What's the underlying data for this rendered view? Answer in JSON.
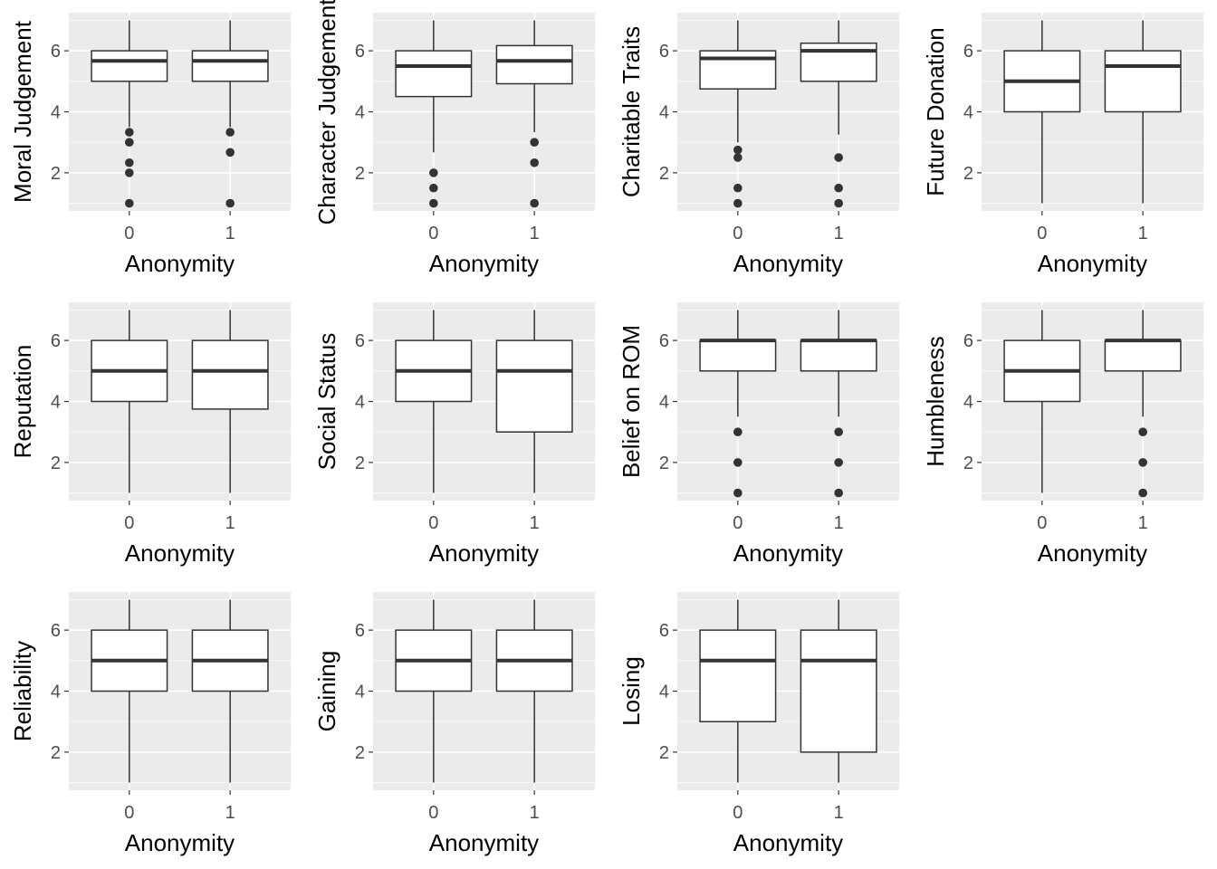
{
  "chart_data": [
    {
      "type": "boxplot",
      "xlabel": "Anonymity",
      "ylabel": "Moral Judgement",
      "categories": [
        "0",
        "1"
      ],
      "ylim": [
        0.75,
        7.25
      ],
      "yticks": [
        2,
        4,
        6
      ],
      "boxes": [
        {
          "category": "0",
          "whisker_low": 3.5,
          "q1": 5.0,
          "median": 5.67,
          "q3": 6.0,
          "whisker_high": 7.0,
          "outliers": [
            3.33,
            3.0,
            2.33,
            2.0,
            1.0
          ]
        },
        {
          "category": "1",
          "whisker_low": 3.5,
          "q1": 5.0,
          "median": 5.67,
          "q3": 6.0,
          "whisker_high": 7.0,
          "outliers": [
            3.33,
            2.67,
            1.0
          ]
        }
      ]
    },
    {
      "type": "boxplot",
      "xlabel": "Anonymity",
      "ylabel": "Character Judgement",
      "categories": [
        "0",
        "1"
      ],
      "ylim": [
        0.75,
        7.25
      ],
      "yticks": [
        2,
        4,
        6
      ],
      "boxes": [
        {
          "category": "0",
          "whisker_low": 2.67,
          "q1": 4.5,
          "median": 5.5,
          "q3": 6.0,
          "whisker_high": 7.0,
          "outliers": [
            2.0,
            1.5,
            1.0
          ]
        },
        {
          "category": "1",
          "whisker_low": 3.33,
          "q1": 4.92,
          "median": 5.67,
          "q3": 6.17,
          "whisker_high": 7.0,
          "outliers": [
            3.0,
            2.33,
            1.0
          ]
        }
      ]
    },
    {
      "type": "boxplot",
      "xlabel": "Anonymity",
      "ylabel": "Charitable Traits",
      "categories": [
        "0",
        "1"
      ],
      "ylim": [
        0.75,
        7.25
      ],
      "yticks": [
        2,
        4,
        6
      ],
      "boxes": [
        {
          "category": "0",
          "whisker_low": 3.0,
          "q1": 4.75,
          "median": 5.75,
          "q3": 6.0,
          "whisker_high": 7.0,
          "outliers": [
            2.75,
            2.5,
            1.5,
            1.0
          ]
        },
        {
          "category": "1",
          "whisker_low": 3.25,
          "q1": 5.0,
          "median": 6.0,
          "q3": 6.25,
          "whisker_high": 7.0,
          "outliers": [
            2.5,
            1.5,
            1.0
          ]
        }
      ]
    },
    {
      "type": "boxplot",
      "xlabel": "Anonymity",
      "ylabel": "Future Donation",
      "categories": [
        "0",
        "1"
      ],
      "ylim": [
        0.75,
        7.25
      ],
      "yticks": [
        2,
        4,
        6
      ],
      "boxes": [
        {
          "category": "0",
          "whisker_low": 1.0,
          "q1": 4.0,
          "median": 5.0,
          "q3": 6.0,
          "whisker_high": 7.0,
          "outliers": []
        },
        {
          "category": "1",
          "whisker_low": 1.0,
          "q1": 4.0,
          "median": 5.5,
          "q3": 6.0,
          "whisker_high": 7.0,
          "outliers": []
        }
      ]
    },
    {
      "type": "boxplot",
      "xlabel": "Anonymity",
      "ylabel": "Reputation",
      "categories": [
        "0",
        "1"
      ],
      "ylim": [
        0.75,
        7.25
      ],
      "yticks": [
        2,
        4,
        6
      ],
      "boxes": [
        {
          "category": "0",
          "whisker_low": 1.0,
          "q1": 4.0,
          "median": 5.0,
          "q3": 6.0,
          "whisker_high": 7.0,
          "outliers": []
        },
        {
          "category": "1",
          "whisker_low": 1.0,
          "q1": 3.75,
          "median": 5.0,
          "q3": 6.0,
          "whisker_high": 7.0,
          "outliers": []
        }
      ]
    },
    {
      "type": "boxplot",
      "xlabel": "Anonymity",
      "ylabel": "Social Status",
      "categories": [
        "0",
        "1"
      ],
      "ylim": [
        0.75,
        7.25
      ],
      "yticks": [
        2,
        4,
        6
      ],
      "boxes": [
        {
          "category": "0",
          "whisker_low": 1.0,
          "q1": 4.0,
          "median": 5.0,
          "q3": 6.0,
          "whisker_high": 7.0,
          "outliers": []
        },
        {
          "category": "1",
          "whisker_low": 1.0,
          "q1": 3.0,
          "median": 5.0,
          "q3": 6.0,
          "whisker_high": 7.0,
          "outliers": []
        }
      ]
    },
    {
      "type": "boxplot",
      "xlabel": "Anonymity",
      "ylabel": "Belief on ROM",
      "categories": [
        "0",
        "1"
      ],
      "ylim": [
        0.75,
        7.25
      ],
      "yticks": [
        2,
        4,
        6
      ],
      "boxes": [
        {
          "category": "0",
          "whisker_low": 3.5,
          "q1": 5.0,
          "median": 6.0,
          "q3": 6.0,
          "whisker_high": 7.0,
          "outliers": [
            3.0,
            2.0,
            1.0
          ]
        },
        {
          "category": "1",
          "whisker_low": 3.5,
          "q1": 5.0,
          "median": 6.0,
          "q3": 6.0,
          "whisker_high": 7.0,
          "outliers": [
            3.0,
            2.0,
            1.0
          ]
        }
      ]
    },
    {
      "type": "boxplot",
      "xlabel": "Anonymity",
      "ylabel": "Humbleness",
      "categories": [
        "0",
        "1"
      ],
      "ylim": [
        0.75,
        7.25
      ],
      "yticks": [
        2,
        4,
        6
      ],
      "boxes": [
        {
          "category": "0",
          "whisker_low": 1.0,
          "q1": 4.0,
          "median": 5.0,
          "q3": 6.0,
          "whisker_high": 7.0,
          "outliers": []
        },
        {
          "category": "1",
          "whisker_low": 3.5,
          "q1": 5.0,
          "median": 6.0,
          "q3": 6.0,
          "whisker_high": 7.0,
          "outliers": [
            3.0,
            2.0,
            1.0
          ]
        }
      ]
    },
    {
      "type": "boxplot",
      "xlabel": "Anonymity",
      "ylabel": "Reliability",
      "categories": [
        "0",
        "1"
      ],
      "ylim": [
        0.75,
        7.25
      ],
      "yticks": [
        2,
        4,
        6
      ],
      "boxes": [
        {
          "category": "0",
          "whisker_low": 1.0,
          "q1": 4.0,
          "median": 5.0,
          "q3": 6.0,
          "whisker_high": 7.0,
          "outliers": []
        },
        {
          "category": "1",
          "whisker_low": 1.0,
          "q1": 4.0,
          "median": 5.0,
          "q3": 6.0,
          "whisker_high": 7.0,
          "outliers": []
        }
      ]
    },
    {
      "type": "boxplot",
      "xlabel": "Anonymity",
      "ylabel": "Gaining",
      "categories": [
        "0",
        "1"
      ],
      "ylim": [
        0.75,
        7.25
      ],
      "yticks": [
        2,
        4,
        6
      ],
      "boxes": [
        {
          "category": "0",
          "whisker_low": 1.0,
          "q1": 4.0,
          "median": 5.0,
          "q3": 6.0,
          "whisker_high": 7.0,
          "outliers": []
        },
        {
          "category": "1",
          "whisker_low": 1.0,
          "q1": 4.0,
          "median": 5.0,
          "q3": 6.0,
          "whisker_high": 7.0,
          "outliers": []
        }
      ]
    },
    {
      "type": "boxplot",
      "xlabel": "Anonymity",
      "ylabel": "Losing",
      "categories": [
        "0",
        "1"
      ],
      "ylim": [
        0.75,
        7.25
      ],
      "yticks": [
        2,
        4,
        6
      ],
      "boxes": [
        {
          "category": "0",
          "whisker_low": 1.0,
          "q1": 3.0,
          "median": 5.0,
          "q3": 6.0,
          "whisker_high": 7.0,
          "outliers": []
        },
        {
          "category": "1",
          "whisker_low": 1.0,
          "q1": 2.0,
          "median": 5.0,
          "q3": 6.0,
          "whisker_high": 7.0,
          "outliers": []
        }
      ]
    }
  ]
}
